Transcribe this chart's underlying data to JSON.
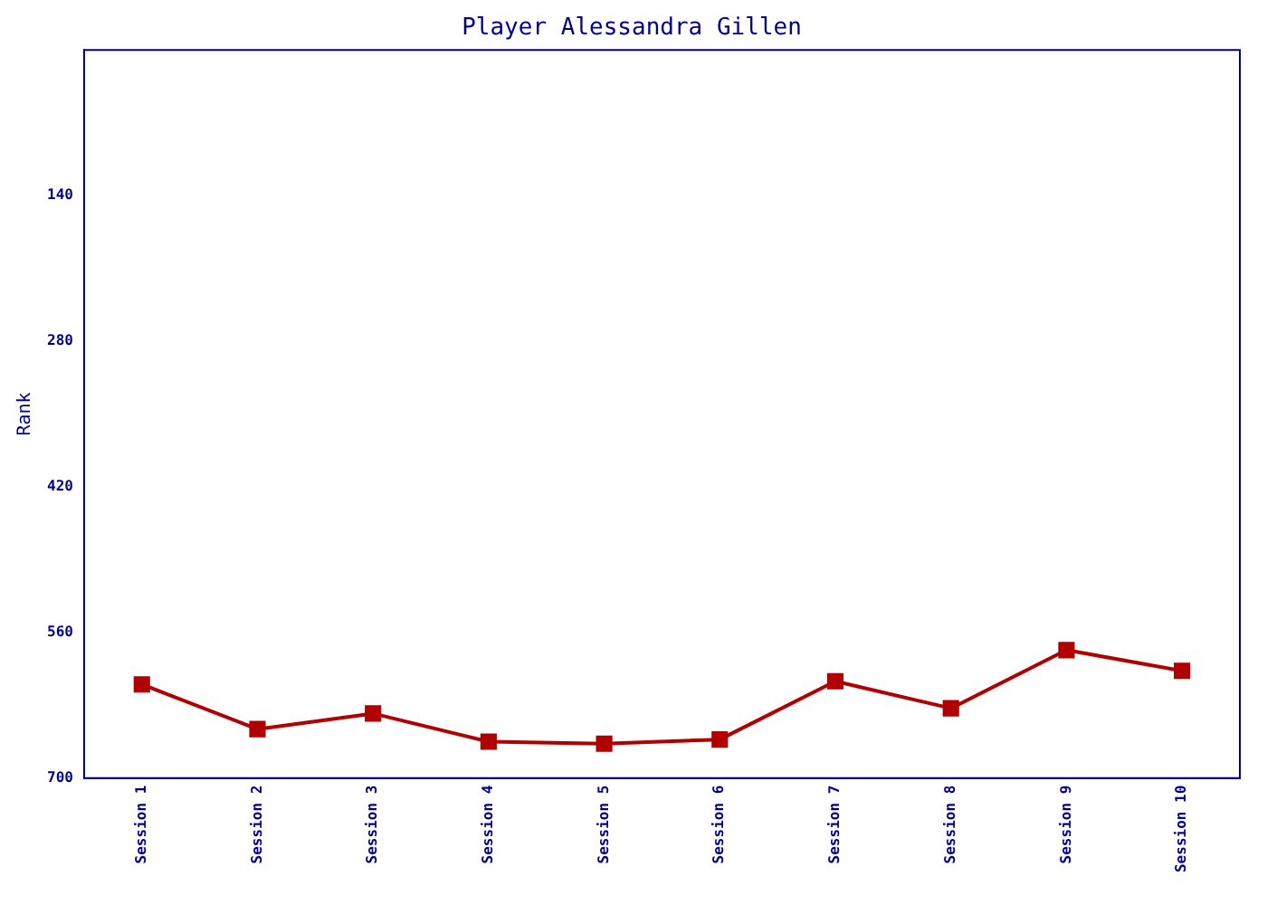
{
  "chart_data": {
    "type": "line",
    "title": "Player Alessandra Gillen",
    "ylabel": "Rank",
    "categories": [
      "Session 1",
      "Session 2",
      "Session 3",
      "Session 4",
      "Session 5",
      "Session 6",
      "Session 7",
      "Session 8",
      "Session 9",
      "Session 10"
    ],
    "series": [
      {
        "color": "#b00000",
        "values": [
          610,
          653,
          638,
          665,
          667,
          663,
          607,
          633,
          577,
          597
        ]
      }
    ],
    "ylim": [
      700,
      0
    ],
    "yticks": [
      140,
      280,
      420,
      560,
      700
    ],
    "grid": false,
    "legend": false,
    "marker": "square",
    "line_style": "solid"
  }
}
